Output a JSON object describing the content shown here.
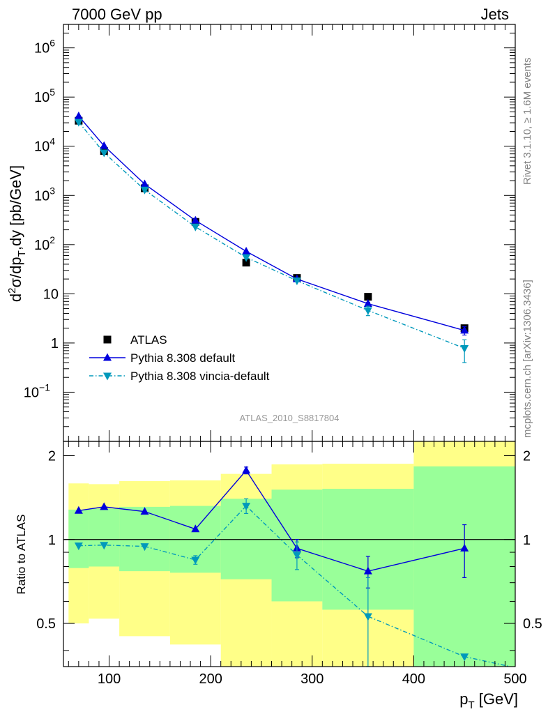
{
  "header": {
    "left": "7000 GeV pp",
    "right": "Jets"
  },
  "side_labels": {
    "rivet": "Rivet 3.1.10, ≥ 1.6M events",
    "mcplots": "mcplots.cern.ch [arXiv:1306.3436]"
  },
  "analysis_label": "ATLAS_2010_S8817804",
  "chart_data": [
    {
      "type": "line",
      "panel": "main",
      "ylabel": "d²σ/dp_T,dy [pb/GeV]",
      "yscale": "log",
      "xlim": [
        55,
        500
      ],
      "ylim": [
        0.01,
        3000000
      ],
      "y_ticks": [
        {
          "value": 1000000,
          "label": "10",
          "exp": "6"
        },
        {
          "value": 100000,
          "label": "10",
          "exp": "5"
        },
        {
          "value": 10000,
          "label": "10",
          "exp": "4"
        },
        {
          "value": 1000,
          "label": "10",
          "exp": "3"
        },
        {
          "value": 100,
          "label": "10",
          "exp": "2"
        },
        {
          "value": 10,
          "label": "10",
          "exp": ""
        },
        {
          "value": 1,
          "label": "1",
          "exp": ""
        },
        {
          "value": 0.1,
          "label": "10",
          "exp": "−1"
        }
      ],
      "legend": {
        "placement": "bottom-left"
      },
      "series": [
        {
          "name": "ATLAS",
          "color": "#000000",
          "marker": "square",
          "x": [
            70,
            95,
            135,
            185,
            235,
            285,
            355,
            450
          ],
          "y": [
            33000,
            8000,
            1400,
            290,
            43,
            21,
            8.7,
            2.0
          ],
          "xerr": [
            [
              60,
              80
            ],
            [
              80,
              110
            ],
            [
              110,
              160
            ],
            [
              160,
              210
            ],
            [
              210,
              260
            ],
            [
              260,
              310
            ],
            [
              310,
              400
            ],
            [
              400,
              500
            ]
          ]
        },
        {
          "name": "Pythia 8.308 default",
          "color": "#0000dd",
          "marker": "triangle-up",
          "x": [
            70,
            95,
            135,
            185,
            235,
            285,
            355,
            450
          ],
          "y": [
            41000,
            10200,
            1700,
            310,
            73,
            20,
            6.3,
            1.8
          ],
          "yerr": [
            0,
            0,
            0,
            0,
            0,
            0,
            0.4,
            0.35
          ]
        },
        {
          "name": "Pythia 8.308 vincia-default",
          "color": "#0099bb",
          "marker": "triangle-down",
          "x": [
            70,
            95,
            135,
            185,
            235,
            285,
            355,
            450
          ],
          "y": [
            31000,
            7400,
            1300,
            230,
            55,
            18.5,
            4.6,
            0.78
          ],
          "yerr": [
            0,
            0,
            0,
            0,
            0,
            0,
            1.0,
            0.38
          ]
        }
      ]
    },
    {
      "type": "line",
      "panel": "ratio",
      "xlabel": "p_T [GeV]",
      "ylabel": "Ratio to ATLAS",
      "xlim": [
        55,
        500
      ],
      "ylim": [
        0.35,
        2.25
      ],
      "x_ticks": [
        100,
        200,
        300,
        400,
        500
      ],
      "y_ticks": [
        0.5,
        1,
        2
      ],
      "reference_line": 1,
      "bands": {
        "x_edges": [
          60,
          80,
          110,
          160,
          210,
          260,
          310,
          400,
          500
        ],
        "yellow_low": [
          0.5,
          0.52,
          0.45,
          0.42,
          0.35,
          0.35,
          0.35,
          0.35
        ],
        "yellow_high": [
          1.59,
          1.58,
          1.62,
          1.63,
          1.72,
          1.86,
          1.87,
          2.25
        ],
        "green_low": [
          0.79,
          0.8,
          0.77,
          0.76,
          0.72,
          0.6,
          0.56,
          0.35
        ],
        "green_high": [
          1.28,
          1.29,
          1.31,
          1.32,
          1.4,
          1.51,
          1.52,
          1.83
        ],
        "yellow_color": "#ffff88",
        "green_color": "#99ff99"
      },
      "series": [
        {
          "name": "Pythia 8.308 default",
          "color": "#0000dd",
          "marker": "triangle-up",
          "x": [
            70,
            95,
            135,
            185,
            235,
            285,
            355,
            450
          ],
          "y": [
            1.27,
            1.31,
            1.26,
            1.09,
            1.77,
            0.93,
            0.77,
            0.93
          ],
          "yerr": [
            0,
            0,
            0,
            0,
            0.05,
            0.07,
            0.1,
            0.2
          ]
        },
        {
          "name": "Pythia 8.308 vincia-default",
          "color": "#0099bb",
          "marker": "triangle-down",
          "x": [
            70,
            95,
            135,
            185,
            235,
            285,
            355,
            450,
            495
          ],
          "y": [
            0.95,
            0.955,
            0.945,
            0.845,
            1.32,
            0.88,
            0.53,
            0.38,
            0.35
          ],
          "yerr": [
            0,
            0,
            0,
            0.03,
            0.08,
            0.1,
            0.2,
            0,
            0
          ]
        }
      ]
    }
  ]
}
